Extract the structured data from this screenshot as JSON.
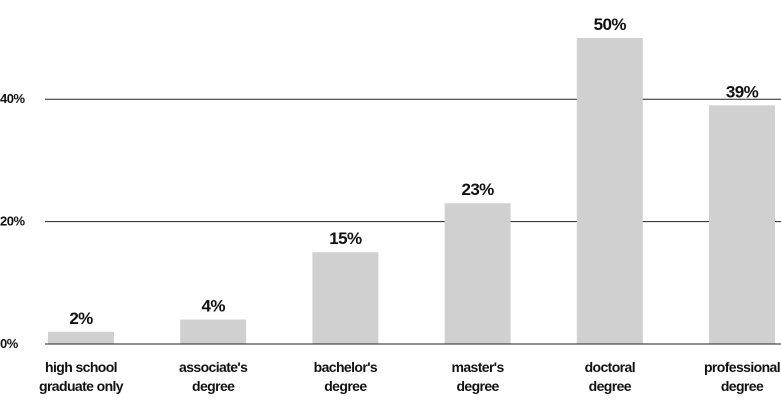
{
  "chart_data": {
    "type": "bar",
    "title": "",
    "xlabel": "",
    "ylabel": "",
    "categories": [
      [
        "high school",
        "graduate only"
      ],
      [
        "associate's",
        "degree"
      ],
      [
        "bachelor's",
        "degree"
      ],
      [
        "master's",
        "degree"
      ],
      [
        "doctoral",
        "degree"
      ],
      [
        "professional",
        "degree"
      ]
    ],
    "values": [
      2,
      4,
      15,
      23,
      50,
      39
    ],
    "value_labels": [
      "2%",
      "4%",
      "15%",
      "23%",
      "50%",
      "39%"
    ],
    "yticks": [
      0,
      20,
      40
    ],
    "ytick_labels": [
      "0%",
      "20%",
      "40%"
    ],
    "ylim": [
      0,
      50
    ],
    "grid": "horizontal",
    "legend": "none",
    "colors": {
      "bar": "#d0d0d0",
      "grid": "#222222",
      "text": "#111111"
    }
  }
}
